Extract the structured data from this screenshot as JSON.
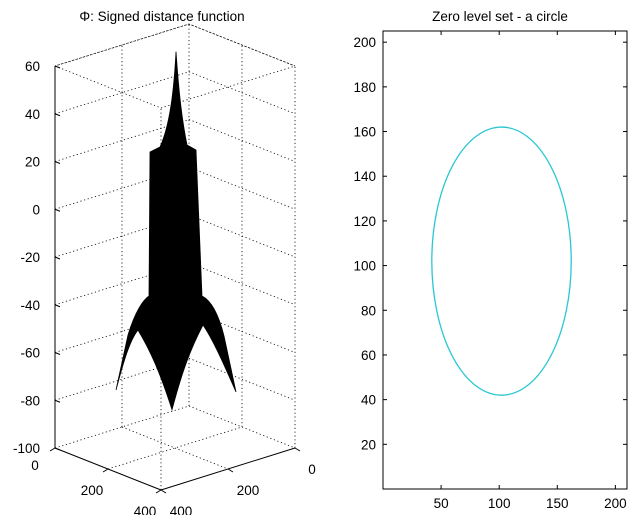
{
  "chart_data": [
    {
      "type": "surface",
      "title": "Φ: Signed distance function",
      "z_ticks": [
        60,
        40,
        20,
        0,
        -20,
        -40,
        -60,
        -80,
        -100
      ],
      "zlim": [
        -100,
        60
      ],
      "x_ticks": [
        0,
        200,
        400
      ],
      "y_ticks": [
        0,
        200,
        400
      ],
      "grid": true,
      "surface_color": "#000000",
      "surface_peak": 66,
      "surface_center_low": -84
    },
    {
      "type": "line",
      "title": "Zero level set - a circle",
      "xlim": [
        0,
        210
      ],
      "ylim": [
        0,
        205
      ],
      "x_ticks": [
        50,
        100,
        150,
        200
      ],
      "y_ticks": [
        20,
        40,
        60,
        80,
        100,
        120,
        140,
        160,
        180,
        200
      ],
      "grid": false,
      "series": [
        {
          "shape": "circle",
          "center": [
            102,
            102
          ],
          "radius": [
            60,
            60
          ],
          "color": "#29c7d4"
        }
      ]
    }
  ]
}
